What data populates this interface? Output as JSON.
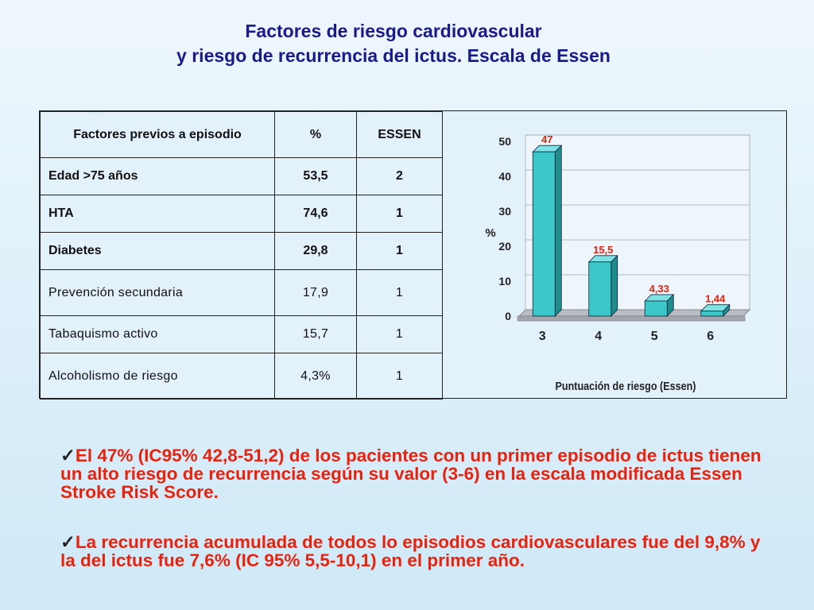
{
  "title": {
    "line1": "Factores de riesgo cardiovascular",
    "line2": "y riesgo de recurrencia del ictus. Escala de Essen"
  },
  "table": {
    "headers": [
      "Factores previos a episodio",
      "%",
      "ESSEN"
    ],
    "rows": [
      {
        "factor": "Edad >75 años",
        "pct": "53,5",
        "essen": "2"
      },
      {
        "factor": "HTA",
        "pct": "74,6",
        "essen": "1"
      },
      {
        "factor": "Diabetes",
        "pct": "29,8",
        "essen": "1"
      },
      {
        "factor": "Prevención secundaria",
        "pct": "17,9",
        "essen": "1"
      },
      {
        "factor": "Tabaquismo activo",
        "pct": "15,7",
        "essen": "1"
      },
      {
        "factor": "Alcoholismo de riesgo",
        "pct": "4,3%",
        "essen": "1"
      }
    ]
  },
  "chart_data": {
    "type": "bar",
    "categories": [
      "3",
      "4",
      "5",
      "6"
    ],
    "values": [
      47,
      15.5,
      4.33,
      1.44
    ],
    "data_labels": [
      "47",
      "15,5",
      "4,33",
      "1,44"
    ],
    "xlabel": "Puntuación de riesgo (Essen)",
    "ylabel": "%",
    "ylim": [
      0,
      50
    ],
    "yticks": [
      "0",
      "10",
      "20",
      "30",
      "40",
      "50"
    ],
    "bar_color": "#3cc8c8",
    "label_color": "#e8220c",
    "grid": true
  },
  "bullets": [
    {
      "check": "✓",
      "text": "El 47% (IC95% 42,8-51,2) de los pacientes con un primer episodio de ictus tienen un alto riesgo de  recurrencia según su valor (3-6) en la escala modificada Essen Stroke Risk Score."
    },
    {
      "check": "✓",
      "text": "La recurrencia acumulada de todos lo episodios cardiovasculares fue del 9,8% y la del ictus fue 7,6% (IC 95% 5,5-10,1) en el primer año."
    }
  ]
}
